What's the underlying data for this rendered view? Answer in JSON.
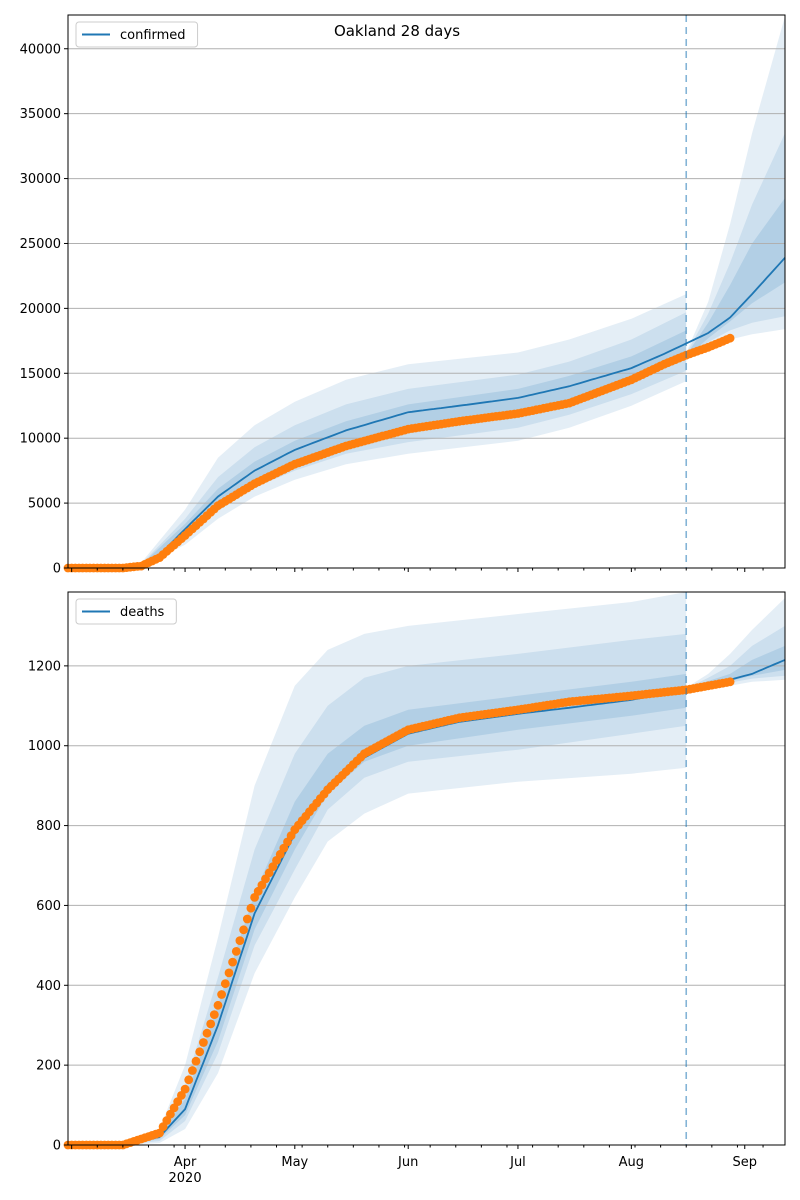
{
  "figure_title": "Oakland 28 days",
  "colors": {
    "model": "#1f77b4",
    "observed": "#ff7f0e",
    "band": "#1f77b4",
    "grid": "#b0b0b0",
    "cutoff": "#1f77b4"
  },
  "x_axis": {
    "tick_labels": [
      "Apr",
      "May",
      "Jun",
      "Jul",
      "Aug",
      "Sep"
    ],
    "year_label": "2020",
    "range": [
      "2020-02-29",
      "2020-09-12"
    ]
  },
  "forecast_start": "2020-08-16",
  "chart_data": [
    {
      "type": "line",
      "legend": "confirmed",
      "legend_placement": "top-left",
      "grid": "horizontal",
      "ylim": [
        0,
        42600
      ],
      "y_ticks": [
        0,
        5000,
        10000,
        15000,
        20000,
        25000,
        30000,
        35000,
        40000
      ],
      "model": {
        "name": "confirmed",
        "x": [
          "2020-02-29",
          "2020-03-10",
          "2020-03-20",
          "2020-03-25",
          "2020-04-01",
          "2020-04-10",
          "2020-04-20",
          "2020-05-01",
          "2020-05-15",
          "2020-06-01",
          "2020-06-15",
          "2020-07-01",
          "2020-07-15",
          "2020-08-01",
          "2020-08-10",
          "2020-08-16",
          "2020-08-22",
          "2020-08-28",
          "2020-09-03",
          "2020-09-12"
        ],
        "y": [
          0,
          0,
          200,
          1000,
          3000,
          5500,
          7500,
          9100,
          10600,
          12000,
          12500,
          13100,
          14000,
          15400,
          16500,
          17300,
          18100,
          19300,
          21100,
          23900
        ]
      },
      "observed": {
        "x": [
          "2020-02-29",
          "2020-03-15",
          "2020-03-20",
          "2020-03-25",
          "2020-04-01",
          "2020-04-10",
          "2020-04-20",
          "2020-05-01",
          "2020-05-15",
          "2020-06-01",
          "2020-06-15",
          "2020-07-01",
          "2020-07-15",
          "2020-08-01",
          "2020-08-10",
          "2020-08-16",
          "2020-08-22",
          "2020-08-28"
        ],
        "y": [
          0,
          0,
          150,
          800,
          2500,
          4800,
          6500,
          8000,
          9400,
          10700,
          11300,
          11900,
          12700,
          14500,
          15700,
          16400,
          17000,
          17700
        ]
      },
      "bands": [
        {
          "x": [
            "2020-02-29",
            "2020-03-15",
            "2020-03-20",
            "2020-04-01",
            "2020-04-10",
            "2020-04-20",
            "2020-05-01",
            "2020-05-15",
            "2020-06-01",
            "2020-07-01",
            "2020-07-15",
            "2020-08-01",
            "2020-08-16"
          ],
          "lo": [
            0,
            0,
            100,
            1800,
            3800,
            5500,
            6800,
            8000,
            8800,
            9800,
            10800,
            12500,
            14400
          ],
          "hi": [
            0,
            0,
            400,
            4500,
            8500,
            11000,
            12800,
            14500,
            15700,
            16600,
            17600,
            19200,
            21100
          ]
        },
        {
          "x": [
            "2020-02-29",
            "2020-03-15",
            "2020-03-20",
            "2020-04-01",
            "2020-04-10",
            "2020-04-20",
            "2020-05-01",
            "2020-05-15",
            "2020-06-01",
            "2020-07-01",
            "2020-07-15",
            "2020-08-01",
            "2020-08-16"
          ],
          "lo": [
            0,
            0,
            150,
            2200,
            4400,
            6200,
            7500,
            8800,
            9700,
            10800,
            11800,
            13400,
            15200
          ],
          "hi": [
            0,
            0,
            300,
            3800,
            7000,
            9300,
            11000,
            12600,
            13800,
            14900,
            15900,
            17600,
            19700
          ]
        },
        {
          "x": [
            "2020-02-29",
            "2020-03-15",
            "2020-03-20",
            "2020-04-01",
            "2020-04-10",
            "2020-04-20",
            "2020-05-01",
            "2020-05-15",
            "2020-06-01",
            "2020-07-01",
            "2020-07-15",
            "2020-08-01",
            "2020-08-16"
          ],
          "lo": [
            0,
            0,
            180,
            2600,
            5000,
            6800,
            8300,
            9700,
            10900,
            11900,
            12900,
            14500,
            16300
          ],
          "hi": [
            0,
            0,
            250,
            3400,
            6100,
            8200,
            9800,
            11300,
            12600,
            13800,
            14800,
            16300,
            18300
          ]
        },
        {
          "x": [
            "2020-08-16",
            "2020-08-22",
            "2020-08-28",
            "2020-09-03",
            "2020-09-12"
          ],
          "lo": [
            16000,
            17000,
            17600,
            18000,
            18400
          ],
          "hi": [
            16600,
            20500,
            26500,
            33500,
            42500
          ]
        },
        {
          "x": [
            "2020-08-16",
            "2020-08-22",
            "2020-08-28",
            "2020-09-03",
            "2020-09-12"
          ],
          "lo": [
            16100,
            17400,
            18300,
            18900,
            19400
          ],
          "hi": [
            16500,
            19600,
            23500,
            28000,
            33500
          ]
        },
        {
          "x": [
            "2020-08-16",
            "2020-08-22",
            "2020-08-28",
            "2020-09-03",
            "2020-09-12"
          ],
          "lo": [
            16200,
            17700,
            19000,
            20400,
            22000
          ],
          "hi": [
            16400,
            18900,
            21800,
            25000,
            28500
          ]
        }
      ]
    },
    {
      "type": "line",
      "legend": "deaths",
      "legend_placement": "top-left",
      "grid": "horizontal",
      "ylim": [
        0,
        1385
      ],
      "y_ticks": [
        0,
        200,
        400,
        600,
        800,
        1000,
        1200
      ],
      "model": {
        "name": "deaths",
        "x": [
          "2020-02-29",
          "2020-03-15",
          "2020-03-25",
          "2020-04-01",
          "2020-04-10",
          "2020-04-20",
          "2020-05-01",
          "2020-05-10",
          "2020-05-20",
          "2020-06-01",
          "2020-06-15",
          "2020-07-01",
          "2020-07-15",
          "2020-08-01",
          "2020-08-16",
          "2020-08-22",
          "2020-08-28",
          "2020-09-03",
          "2020-09-12"
        ],
        "y": [
          0,
          0,
          20,
          90,
          300,
          580,
          780,
          900,
          970,
          1030,
          1060,
          1080,
          1095,
          1115,
          1140,
          1155,
          1165,
          1180,
          1215
        ]
      },
      "observed": {
        "x": [
          "2020-02-29",
          "2020-03-15",
          "2020-03-25",
          "2020-04-01",
          "2020-04-10",
          "2020-04-20",
          "2020-05-01",
          "2020-05-10",
          "2020-05-20",
          "2020-06-01",
          "2020-06-15",
          "2020-07-01",
          "2020-07-15",
          "2020-08-01",
          "2020-08-16",
          "2020-08-22",
          "2020-08-28"
        ],
        "y": [
          0,
          0,
          30,
          140,
          350,
          620,
          790,
          890,
          980,
          1040,
          1070,
          1090,
          1110,
          1125,
          1140,
          1150,
          1160
        ]
      },
      "bands": [
        {
          "x": [
            "2020-02-29",
            "2020-03-15",
            "2020-03-25",
            "2020-04-01",
            "2020-04-10",
            "2020-04-20",
            "2020-05-01",
            "2020-05-10",
            "2020-05-20",
            "2020-06-01",
            "2020-07-01",
            "2020-08-01",
            "2020-08-16"
          ],
          "lo": [
            0,
            0,
            5,
            40,
            180,
            430,
            620,
            760,
            830,
            880,
            910,
            930,
            945
          ],
          "hi": [
            0,
            0,
            40,
            200,
            520,
            900,
            1150,
            1240,
            1280,
            1300,
            1330,
            1360,
            1385
          ]
        },
        {
          "x": [
            "2020-02-29",
            "2020-03-15",
            "2020-03-25",
            "2020-04-01",
            "2020-04-10",
            "2020-04-20",
            "2020-05-01",
            "2020-05-10",
            "2020-05-20",
            "2020-06-01",
            "2020-07-01",
            "2020-08-01",
            "2020-08-16"
          ],
          "lo": [
            0,
            0,
            10,
            60,
            230,
            500,
            690,
            840,
            920,
            960,
            990,
            1030,
            1050
          ],
          "hi": [
            0,
            0,
            30,
            150,
            420,
            740,
            980,
            1100,
            1170,
            1200,
            1230,
            1265,
            1280
          ]
        },
        {
          "x": [
            "2020-02-29",
            "2020-03-15",
            "2020-03-25",
            "2020-04-01",
            "2020-04-10",
            "2020-04-20",
            "2020-05-01",
            "2020-05-10",
            "2020-05-20",
            "2020-06-01",
            "2020-07-01",
            "2020-08-01",
            "2020-08-16"
          ],
          "lo": [
            0,
            0,
            15,
            75,
            260,
            540,
            740,
            880,
            960,
            1000,
            1040,
            1075,
            1095
          ],
          "hi": [
            0,
            0,
            25,
            115,
            350,
            630,
            860,
            980,
            1050,
            1090,
            1125,
            1160,
            1180
          ]
        },
        {
          "x": [
            "2020-08-16",
            "2020-08-22",
            "2020-08-28",
            "2020-09-03",
            "2020-09-12"
          ],
          "lo": [
            1135,
            1145,
            1150,
            1160,
            1165
          ],
          "hi": [
            1145,
            1180,
            1230,
            1290,
            1370
          ]
        },
        {
          "x": [
            "2020-08-16",
            "2020-08-22",
            "2020-08-28",
            "2020-09-03",
            "2020-09-12"
          ],
          "lo": [
            1137,
            1150,
            1158,
            1168,
            1175
          ],
          "hi": [
            1143,
            1170,
            1200,
            1250,
            1300
          ]
        },
        {
          "x": [
            "2020-08-16",
            "2020-08-22",
            "2020-08-28",
            "2020-09-03",
            "2020-09-12"
          ],
          "lo": [
            1138,
            1152,
            1162,
            1175,
            1190
          ],
          "hi": [
            1142,
            1162,
            1180,
            1215,
            1250
          ]
        }
      ]
    }
  ]
}
